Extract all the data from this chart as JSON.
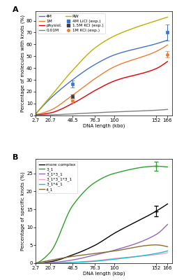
{
  "panel_A": {
    "x_ticks": [
      2.7,
      20.7,
      48.5,
      76.3,
      100,
      152,
      166
    ],
    "x_tick_labels": [
      "2.7",
      "20.7",
      "48.5",
      "76.3",
      "100",
      "152",
      "166"
    ],
    "xlim": [
      2.7,
      172
    ],
    "ylim": [
      0,
      88
    ],
    "ylabel": "Percentage of molecules with knots (%)",
    "xlabel": "DNA length (kbo)",
    "yticks": [
      0,
      10,
      20,
      30,
      40,
      50,
      60,
      70,
      80
    ],
    "lines": {
      "4M": {
        "color": "#4472c4",
        "x": [
          2.7,
          20.7,
          48.5,
          76.3,
          100,
          152,
          166
        ],
        "y": [
          1.0,
          14.0,
          30.0,
          43.0,
          51.0,
          60.5,
          63.5
        ]
      },
      "1M": {
        "color": "#ed7d31",
        "x": [
          2.7,
          20.7,
          48.5,
          76.3,
          100,
          152,
          166
        ],
        "y": [
          0.6,
          4.2,
          17.0,
          31.0,
          41.0,
          54.0,
          59.5
        ]
      },
      "physiol": {
        "color": "#e00000",
        "x": [
          2.7,
          20.7,
          48.5,
          76.3,
          100,
          152,
          166
        ],
        "y": [
          0.4,
          2.0,
          10.0,
          21.0,
          29.0,
          39.5,
          45.5
        ]
      },
      "0.01M": {
        "color": "#808080",
        "x": [
          2.7,
          20.7,
          48.5,
          76.3,
          100,
          152,
          166
        ],
        "y": [
          0.1,
          0.4,
          1.2,
          2.2,
          2.9,
          4.3,
          5.0
        ]
      },
      "RW": {
        "color": "#bcb000",
        "x": [
          2.7,
          20.7,
          48.5,
          76.3,
          100,
          152,
          166
        ],
        "y": [
          1.2,
          15.5,
          38.0,
          57.0,
          67.0,
          80.0,
          83.0
        ]
      }
    },
    "exp_points": {
      "4M LiCl": {
        "color": "#4472c4",
        "marker": "s",
        "x": [
          48.5,
          166
        ],
        "y": [
          26.5,
          70.0
        ],
        "yerr": [
          3.0,
          7.0
        ]
      },
      "1.5M KCl": {
        "color": "#3f3f3f",
        "marker": "s",
        "x": [
          48.5
        ],
        "y": [
          16.0
        ],
        "yerr": [
          1.5
        ]
      },
      "1M KCl": {
        "color": "#ed7d31",
        "marker": "o",
        "x": [
          48.5,
          166
        ],
        "y": [
          12.0,
          51.5
        ],
        "yerr": [
          1.5,
          2.5
        ]
      }
    }
  },
  "panel_B": {
    "x_ticks": [
      2.7,
      20.7,
      48.5,
      76.3,
      100,
      152,
      166
    ],
    "x_tick_labels": [
      "2.7",
      "20.7",
      "48.5",
      "76.3",
      "100",
      "152",
      "166"
    ],
    "xlim": [
      2.7,
      172
    ],
    "ylim": [
      0,
      29
    ],
    "ylabel": "Percentage of specific knots (%)",
    "xlabel": "DNA length (kbp)",
    "yticks": [
      0,
      5,
      10,
      15,
      20,
      25
    ],
    "lines": {
      "more complex": {
        "color": "#000000",
        "x": [
          2.7,
          20.7,
          48.5,
          76.3,
          100,
          152,
          166
        ],
        "y": [
          0.0,
          0.4,
          2.3,
          5.0,
          8.3,
          14.5,
          16.5
        ]
      },
      "3_1": {
        "color": "#2ca02c",
        "x": [
          2.7,
          20.7,
          48.5,
          76.3,
          100,
          152,
          166
        ],
        "y": [
          0.0,
          3.0,
          16.0,
          22.5,
          25.0,
          27.0,
          26.8
        ]
      },
      "3_1*3_1": {
        "color": "#9467bd",
        "x": [
          2.7,
          20.7,
          48.5,
          76.3,
          100,
          152,
          166
        ],
        "y": [
          0.0,
          0.15,
          0.9,
          2.3,
          3.6,
          8.0,
          10.8
        ]
      },
      "3_1*3_1*3_1": {
        "color": "#f4a0c0",
        "x": [
          2.7,
          20.7,
          48.5,
          76.3,
          100,
          152,
          166
        ],
        "y": [
          0.0,
          0.05,
          0.25,
          0.7,
          1.3,
          2.4,
          2.9
        ]
      },
      "3_1*4_1": {
        "color": "#17becf",
        "x": [
          2.7,
          20.7,
          48.5,
          76.3,
          100,
          152,
          166
        ],
        "y": [
          0.0,
          0.05,
          0.2,
          0.55,
          1.1,
          2.7,
          3.4
        ]
      },
      "4_1": {
        "color": "#8c6d31",
        "x": [
          2.7,
          20.7,
          48.5,
          76.3,
          100,
          152,
          166
        ],
        "y": [
          0.0,
          0.8,
          1.9,
          2.7,
          3.4,
          5.1,
          4.6
        ]
      }
    },
    "exp_points": {
      "more complex": {
        "color": "#000000",
        "marker": "+",
        "x": [
          152
        ],
        "y": [
          14.5
        ],
        "yerr": [
          1.5
        ]
      },
      "3_1": {
        "color": "#2ca02c",
        "marker": "+",
        "x": [
          152
        ],
        "y": [
          27.0
        ],
        "yerr": [
          1.2
        ]
      }
    }
  }
}
